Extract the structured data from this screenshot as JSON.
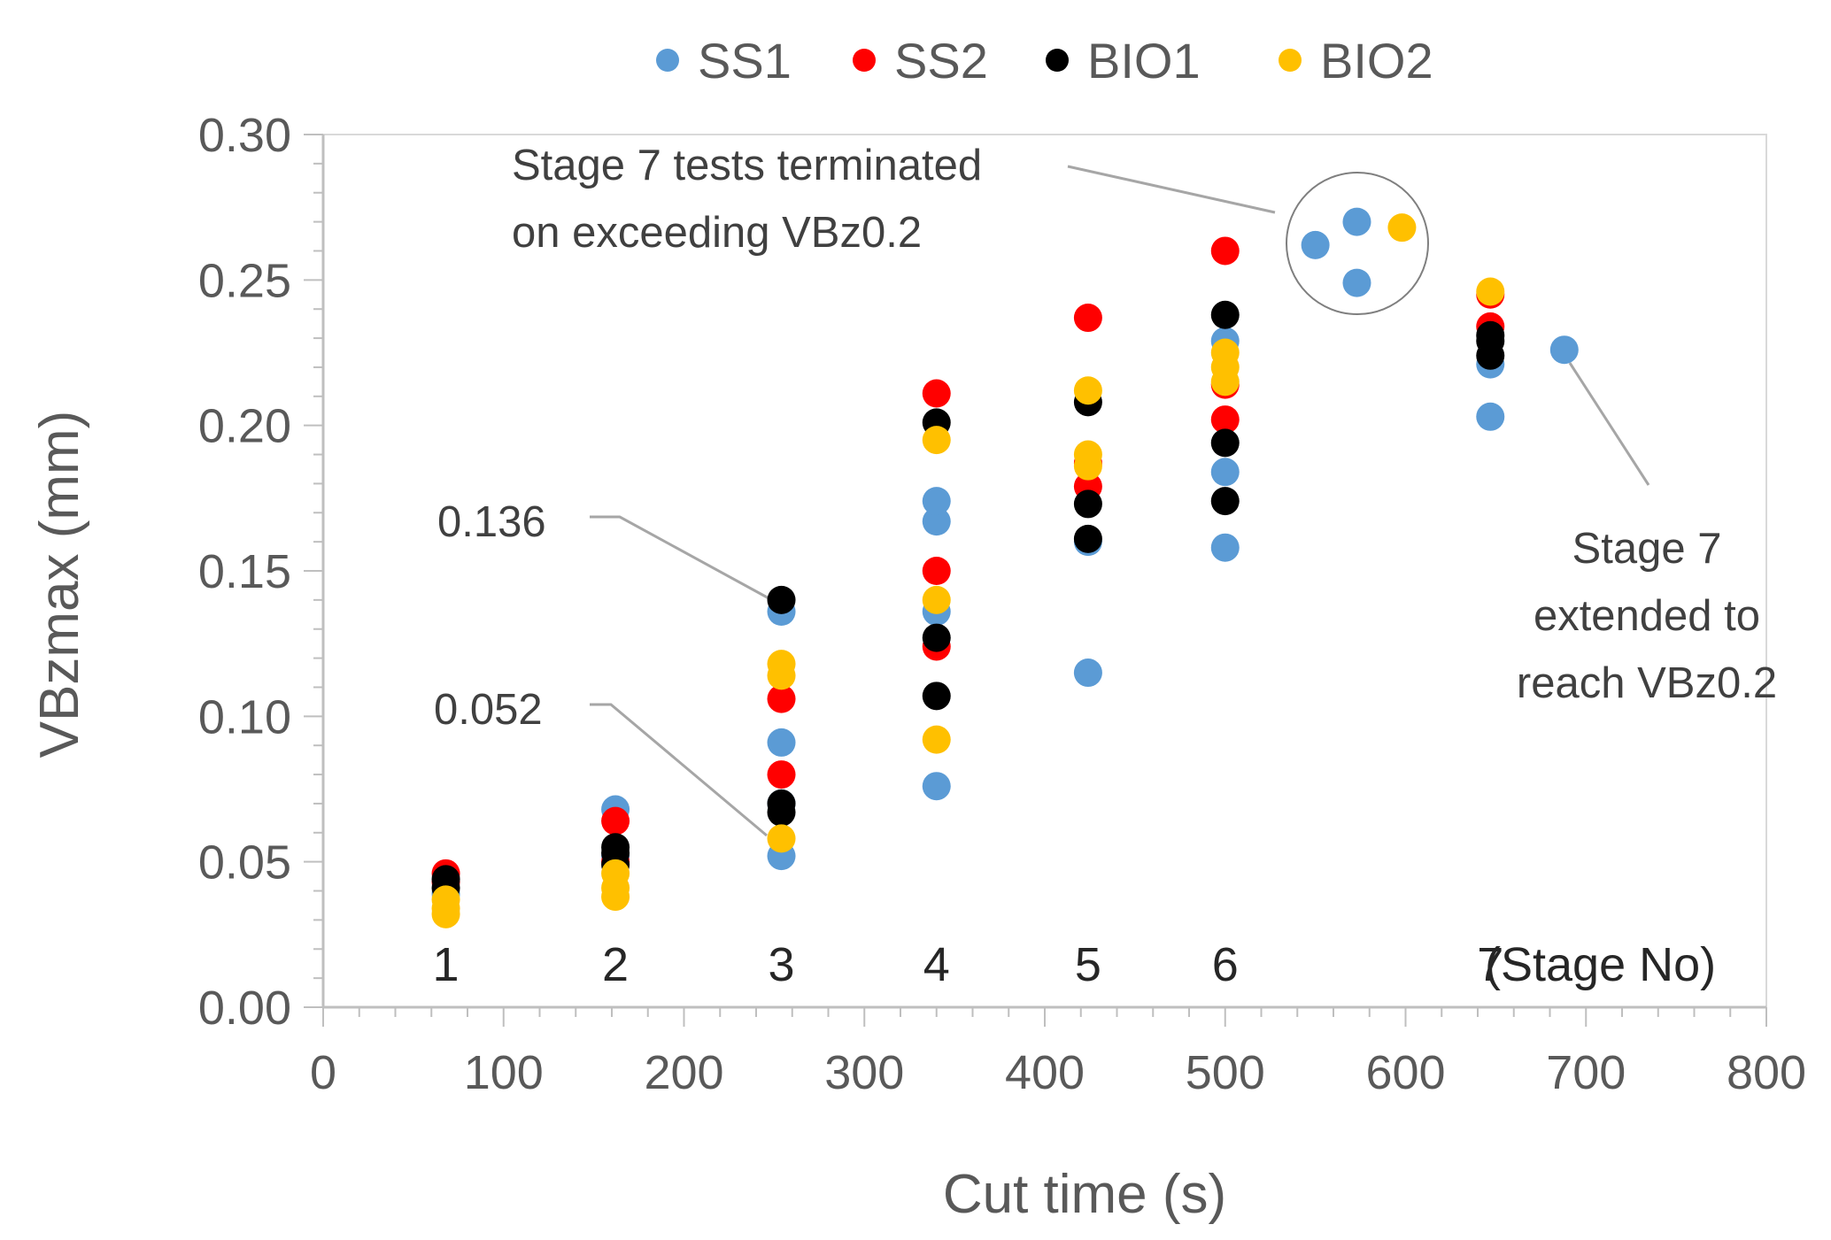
{
  "chart_data": {
    "type": "scatter",
    "title": "",
    "xlabel": "Cut time (s)",
    "ylabel": "VBzmax (mm)",
    "xlim": [
      0,
      800
    ],
    "ylim": [
      0,
      0.3
    ],
    "xticks": [
      0,
      100,
      200,
      300,
      400,
      500,
      600,
      700,
      800
    ],
    "yticks": [
      "0.00",
      "0.05",
      "0.10",
      "0.15",
      "0.20",
      "0.25",
      "0.30"
    ],
    "grid": false,
    "legend_position": "top",
    "colors": {
      "SS1": "#5b9bd5",
      "SS2": "#ff0000",
      "BIO1": "#000000",
      "BIO2": "#ffc000"
    },
    "series": [
      {
        "name": "SS1",
        "color": "#5b9bd5",
        "points": [
          [
            68,
            0.039
          ],
          [
            162,
            0.068
          ],
          [
            162,
            0.052
          ],
          [
            254,
            0.052
          ],
          [
            254,
            0.091
          ],
          [
            254,
            0.136
          ],
          [
            254,
            0.07
          ],
          [
            340,
            0.076
          ],
          [
            340,
            0.136
          ],
          [
            340,
            0.167
          ],
          [
            340,
            0.174
          ],
          [
            424,
            0.115
          ],
          [
            424,
            0.16
          ],
          [
            500,
            0.158
          ],
          [
            500,
            0.184
          ],
          [
            500,
            0.229
          ],
          [
            550,
            0.262
          ],
          [
            573,
            0.27
          ],
          [
            573,
            0.249
          ],
          [
            647,
            0.203
          ],
          [
            647,
            0.221
          ],
          [
            688,
            0.226
          ]
        ]
      },
      {
        "name": "SS2",
        "color": "#ff0000",
        "points": [
          [
            68,
            0.046
          ],
          [
            68,
            0.043
          ],
          [
            162,
            0.064
          ],
          [
            162,
            0.05
          ],
          [
            254,
            0.106
          ],
          [
            254,
            0.08
          ],
          [
            340,
            0.211
          ],
          [
            340,
            0.15
          ],
          [
            340,
            0.124
          ],
          [
            424,
            0.237
          ],
          [
            424,
            0.187
          ],
          [
            424,
            0.179
          ],
          [
            500,
            0.26
          ],
          [
            500,
            0.214
          ],
          [
            500,
            0.202
          ],
          [
            647,
            0.245
          ],
          [
            647,
            0.234
          ]
        ]
      },
      {
        "name": "BIO1",
        "color": "#000000",
        "points": [
          [
            68,
            0.044
          ],
          [
            68,
            0.041
          ],
          [
            162,
            0.055
          ],
          [
            162,
            0.053
          ],
          [
            162,
            0.049
          ],
          [
            254,
            0.14
          ],
          [
            254,
            0.07
          ],
          [
            254,
            0.067
          ],
          [
            340,
            0.201
          ],
          [
            340,
            0.127
          ],
          [
            340,
            0.107
          ],
          [
            424,
            0.208
          ],
          [
            424,
            0.173
          ],
          [
            424,
            0.161
          ],
          [
            500,
            0.238
          ],
          [
            500,
            0.194
          ],
          [
            500,
            0.174
          ],
          [
            647,
            0.231
          ],
          [
            647,
            0.229
          ],
          [
            647,
            0.224
          ]
        ]
      },
      {
        "name": "BIO2",
        "color": "#ffc000",
        "points": [
          [
            68,
            0.037
          ],
          [
            68,
            0.034
          ],
          [
            68,
            0.032
          ],
          [
            162,
            0.046
          ],
          [
            162,
            0.041
          ],
          [
            162,
            0.038
          ],
          [
            254,
            0.118
          ],
          [
            254,
            0.114
          ],
          [
            254,
            0.058
          ],
          [
            340,
            0.195
          ],
          [
            340,
            0.14
          ],
          [
            340,
            0.092
          ],
          [
            424,
            0.212
          ],
          [
            424,
            0.19
          ],
          [
            424,
            0.186
          ],
          [
            500,
            0.225
          ],
          [
            500,
            0.22
          ],
          [
            500,
            0.215
          ],
          [
            598,
            0.268
          ],
          [
            647,
            0.246
          ]
        ]
      }
    ],
    "stage_labels": [
      {
        "text": "1",
        "x": 68
      },
      {
        "text": "2",
        "x": 162
      },
      {
        "text": "3",
        "x": 254
      },
      {
        "text": "4",
        "x": 340
      },
      {
        "text": "5",
        "x": 424
      },
      {
        "text": "6",
        "x": 500
      },
      {
        "text": "7",
        "x": 647
      }
    ],
    "stage_axis_label": "(Stage No)",
    "annotations": {
      "terminated": [
        "Stage 7 tests terminated",
        "on exceeding VBz0.2"
      ],
      "extended": [
        "Stage 7",
        "extended to",
        "reach VBz0.2"
      ],
      "value_high": "0.136",
      "value_low": "0.052"
    }
  }
}
